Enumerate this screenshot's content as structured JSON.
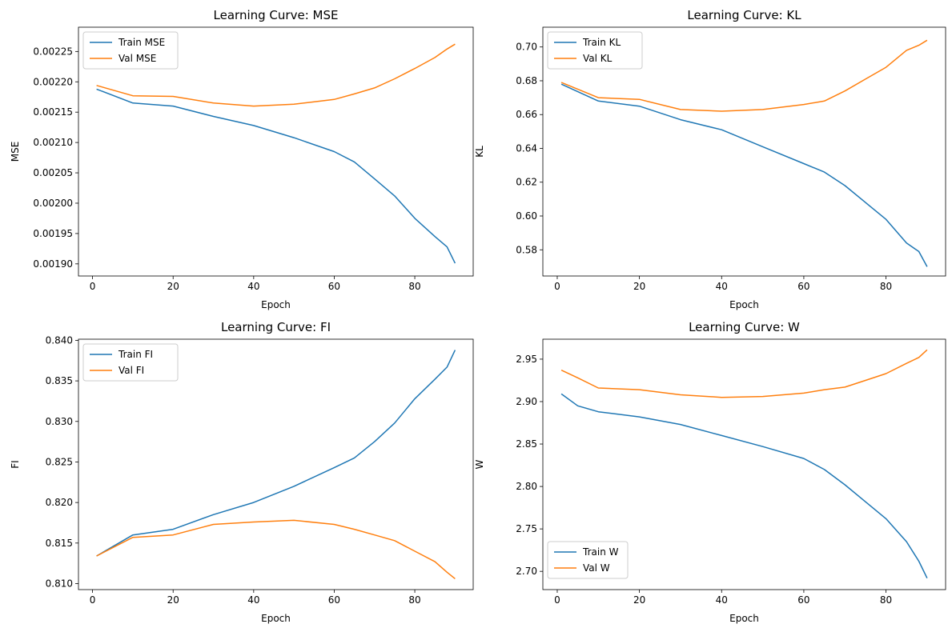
{
  "chart_data": [
    {
      "type": "line",
      "title": "Learning Curve: MSE",
      "xlabel": "Epoch",
      "ylabel": "MSE",
      "xlim": [
        -3.5,
        94.5
      ],
      "ylim": [
        0.00188,
        0.00229
      ],
      "xticks": [
        0,
        20,
        40,
        60,
        80
      ],
      "xtick_labels": [
        "0",
        "20",
        "40",
        "60",
        "80"
      ],
      "yticks": [
        0.0019,
        0.00195,
        0.002,
        0.00205,
        0.0021,
        0.00215,
        0.0022,
        0.00225
      ],
      "ytick_labels": [
        "0.00190",
        "0.00195",
        "0.00200",
        "0.00205",
        "0.00210",
        "0.00215",
        "0.00220",
        "0.00225"
      ],
      "legend": "upper-left",
      "x": [
        1,
        10,
        20,
        30,
        40,
        50,
        60,
        65,
        70,
        75,
        80,
        85,
        88,
        90
      ],
      "series": [
        {
          "name": "Train MSE",
          "color": "#1f77b4",
          "values": [
            0.002188,
            0.002165,
            0.00216,
            0.002143,
            0.002128,
            0.002108,
            0.002085,
            0.002068,
            0.00204,
            0.002012,
            0.001975,
            0.001945,
            0.001928,
            0.001901
          ]
        },
        {
          "name": "Val MSE",
          "color": "#ff7f0e",
          "values": [
            0.002194,
            0.002177,
            0.002176,
            0.002165,
            0.00216,
            0.002163,
            0.002171,
            0.00218,
            0.00219,
            0.002205,
            0.002222,
            0.00224,
            0.002254,
            0.002262
          ]
        }
      ]
    },
    {
      "type": "line",
      "title": "Learning Curve: KL",
      "xlabel": "Epoch",
      "ylabel": "KL",
      "xlim": [
        -3.5,
        94.5
      ],
      "ylim": [
        0.5645,
        0.7117
      ],
      "xticks": [
        0,
        20,
        40,
        60,
        80
      ],
      "xtick_labels": [
        "0",
        "20",
        "40",
        "60",
        "80"
      ],
      "yticks": [
        0.58,
        0.6,
        0.62,
        0.64,
        0.66,
        0.68,
        0.7
      ],
      "ytick_labels": [
        "0.58",
        "0.60",
        "0.62",
        "0.64",
        "0.66",
        "0.68",
        "0.70"
      ],
      "legend": "upper-left",
      "x": [
        1,
        10,
        20,
        30,
        40,
        50,
        60,
        65,
        70,
        75,
        80,
        85,
        88,
        90
      ],
      "series": [
        {
          "name": "Train KL",
          "color": "#1f77b4",
          "values": [
            0.678,
            0.668,
            0.665,
            0.657,
            0.651,
            0.641,
            0.631,
            0.626,
            0.618,
            0.608,
            0.598,
            0.584,
            0.579,
            0.57
          ]
        },
        {
          "name": "Val KL",
          "color": "#ff7f0e",
          "values": [
            0.679,
            0.67,
            0.669,
            0.663,
            0.662,
            0.663,
            0.666,
            0.668,
            0.674,
            0.681,
            0.688,
            0.698,
            0.701,
            0.704
          ]
        }
      ]
    },
    {
      "type": "line",
      "title": "Learning Curve: FI",
      "xlabel": "Epoch",
      "ylabel": "FI",
      "xlim": [
        -3.5,
        94.5
      ],
      "ylim": [
        0.80926,
        0.84014
      ],
      "xticks": [
        0,
        20,
        40,
        60,
        80
      ],
      "xtick_labels": [
        "0",
        "20",
        "40",
        "60",
        "80"
      ],
      "yticks": [
        0.81,
        0.815,
        0.82,
        0.825,
        0.83,
        0.835,
        0.84
      ],
      "ytick_labels": [
        "0.810",
        "0.815",
        "0.820",
        "0.825",
        "0.830",
        "0.835",
        "0.840"
      ],
      "legend": "upper-left",
      "x": [
        1,
        10,
        20,
        30,
        40,
        50,
        60,
        65,
        70,
        75,
        80,
        85,
        88,
        90
      ],
      "series": [
        {
          "name": "Train FI",
          "color": "#1f77b4",
          "values": [
            0.8134,
            0.816,
            0.8167,
            0.8185,
            0.82,
            0.822,
            0.8243,
            0.8255,
            0.8275,
            0.8298,
            0.8328,
            0.8352,
            0.8367,
            0.8388
          ]
        },
        {
          "name": "Val FI",
          "color": "#ff7f0e",
          "values": [
            0.8134,
            0.8157,
            0.816,
            0.8173,
            0.8176,
            0.8178,
            0.8173,
            0.8167,
            0.816,
            0.8153,
            0.814,
            0.8127,
            0.8114,
            0.8106
          ]
        }
      ]
    },
    {
      "type": "line",
      "title": "Learning Curve: W",
      "xlabel": "Epoch",
      "ylabel": "W",
      "xlim": [
        -3.5,
        94.5
      ],
      "ylim": [
        2.6785,
        2.9735
      ],
      "xticks": [
        0,
        20,
        40,
        60,
        80
      ],
      "xtick_labels": [
        "0",
        "20",
        "40",
        "60",
        "80"
      ],
      "yticks": [
        2.7,
        2.75,
        2.8,
        2.85,
        2.9,
        2.95
      ],
      "ytick_labels": [
        "2.70",
        "2.75",
        "2.80",
        "2.85",
        "2.90",
        "2.95"
      ],
      "legend": "lower-left",
      "x": [
        1,
        5,
        10,
        20,
        30,
        40,
        50,
        60,
        65,
        70,
        75,
        80,
        85,
        88,
        90
      ],
      "series": [
        {
          "name": "Train W",
          "color": "#1f77b4",
          "values": [
            2.909,
            2.895,
            2.888,
            2.882,
            2.873,
            2.86,
            2.847,
            2.833,
            2.82,
            2.802,
            2.782,
            2.762,
            2.735,
            2.712,
            2.692
          ]
        },
        {
          "name": "Val W",
          "color": "#ff7f0e",
          "values": [
            2.937,
            2.928,
            2.916,
            2.914,
            2.908,
            2.905,
            2.906,
            2.91,
            2.914,
            2.917,
            2.925,
            2.933,
            2.945,
            2.952,
            2.961
          ]
        }
      ]
    }
  ]
}
